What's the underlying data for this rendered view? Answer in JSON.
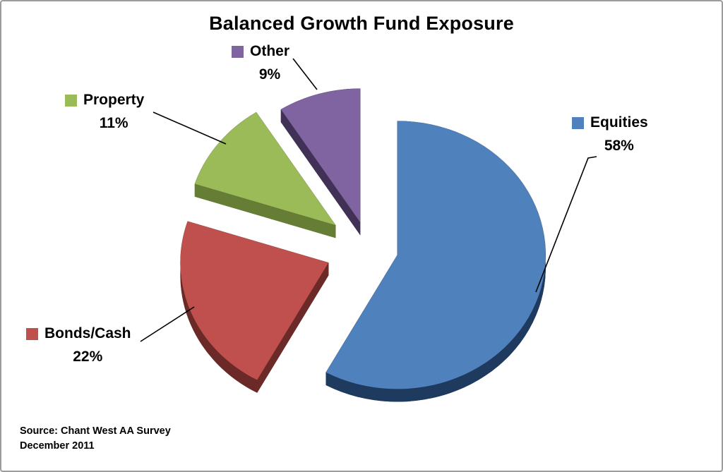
{
  "window": {
    "background": "#ffffff",
    "border_color": "#9c9c9c"
  },
  "chart_data": {
    "type": "pie",
    "style": "3d-exploded",
    "title": "Balanced Growth Fund Exposure",
    "direction": "clockwise",
    "start_angle_deg": 90,
    "legend_position": "data-labels-with-leader-lines",
    "slices": [
      {
        "name": "Equities",
        "value": 58,
        "pct_label": "58%",
        "color": "#4f81bd",
        "side_color": "#1f3a5f",
        "explode": 0.2
      },
      {
        "name": "Bonds/Cash",
        "value": 22,
        "pct_label": "22%",
        "color": "#c0504d",
        "side_color": "#6b2a27",
        "explode": 0.29
      },
      {
        "name": "Property",
        "value": 11,
        "pct_label": "11%",
        "color": "#9bbb59",
        "side_color": "#657d35",
        "explode": 0.28
      },
      {
        "name": "Other",
        "value": 9,
        "pct_label": "9%",
        "color": "#8064a2",
        "side_color": "#413156",
        "explode": 0.2
      }
    ],
    "source_line1": "Source: Chant West AA Survey",
    "source_line2": "December 2011"
  }
}
